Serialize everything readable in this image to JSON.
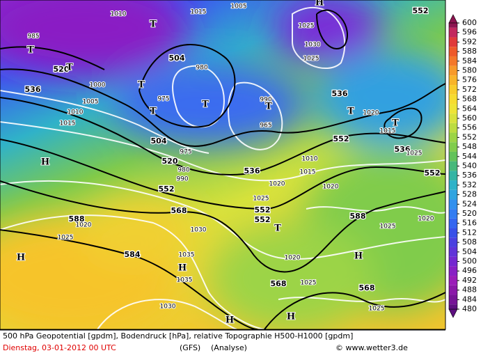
{
  "map": {
    "footer": {
      "line1": "500 hPa Geopotential [gpdm], Bodendruck [hPa], relative Topographie H500-H1000 [gpdm]",
      "date": "Dienstag, 03-01-2012  00 UTC",
      "model": "(GFS)",
      "run": "(Analyse)",
      "credit": "© www.wetter3.de"
    },
    "colorbar": {
      "labels": [
        600,
        596,
        592,
        588,
        584,
        580,
        576,
        572,
        568,
        564,
        560,
        556,
        552,
        548,
        544,
        540,
        536,
        532,
        528,
        524,
        520,
        516,
        512,
        508,
        504,
        500,
        496,
        492,
        488,
        484,
        480
      ],
      "colors": [
        "#8c1450",
        "#c2285e",
        "#e03a3a",
        "#ee5a2a",
        "#f4782a",
        "#f79a2a",
        "#f8b42a",
        "#f8cc2c",
        "#f6dc30",
        "#eee436",
        "#d8e23c",
        "#bcdc40",
        "#9cd446",
        "#80cc4c",
        "#62c25a",
        "#46b87a",
        "#34b4a4",
        "#2eb2c8",
        "#30a4e0",
        "#3290ee",
        "#327cf2",
        "#3466f0",
        "#3850e8",
        "#4a40e0",
        "#6034d8",
        "#7428d0",
        "#8820c4",
        "#9a1cb8",
        "#8a18a8",
        "#761496",
        "#5e1080"
      ]
    },
    "geopotential_labels": [
      520,
      536,
      504,
      504,
      520,
      552,
      568,
      588,
      584,
      536,
      552,
      552,
      536,
      552,
      536,
      552,
      568,
      568,
      588,
      552
    ],
    "pressure_labels": [
      1010,
      1015,
      1005,
      985,
      1000,
      975,
      980,
      990,
      965,
      1010,
      1015,
      1020,
      1025,
      1020,
      1020,
      1030,
      1025,
      1020,
      1035,
      1035,
      1030,
      1020,
      1025,
      1025,
      1020,
      1025,
      1025,
      1030,
      1025,
      1010,
      1015,
      1005,
      975,
      980,
      990,
      1025,
      1015
    ],
    "symbols": [
      "T",
      "T",
      "T",
      "T",
      "T",
      "T",
      "T",
      "T",
      "T",
      "T",
      "H",
      "H",
      "H",
      "H",
      "H",
      "H",
      "H"
    ]
  }
}
